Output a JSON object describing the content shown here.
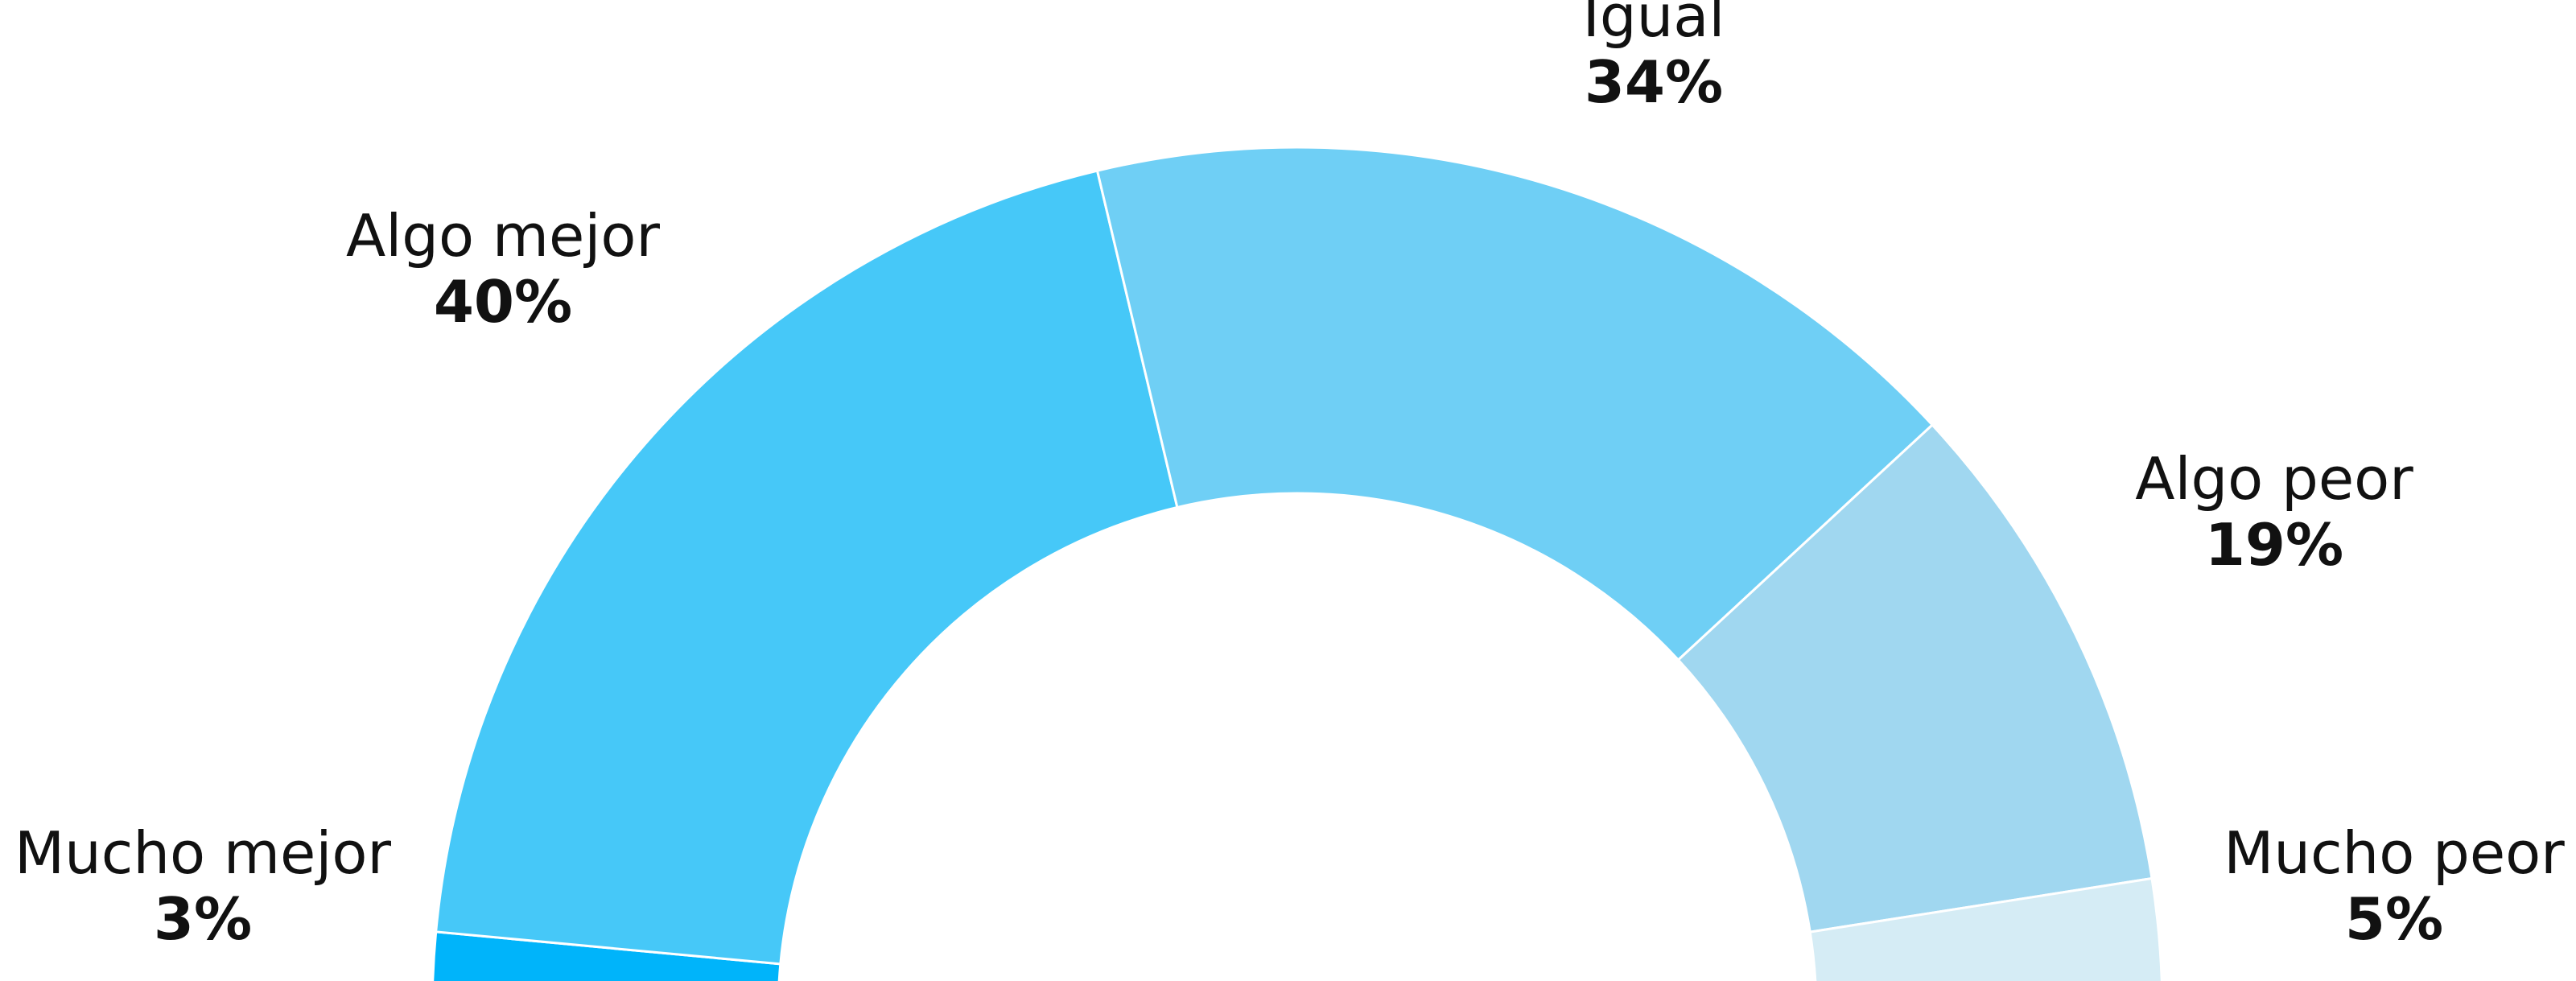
{
  "chart_data": {
    "type": "pie",
    "variant": "semi-donut",
    "title": "",
    "unit": "%",
    "slices": [
      {
        "label": "Mucho mejor",
        "value": 3,
        "display": "3%",
        "color": "#00b4fa"
      },
      {
        "label": "Algo mejor",
        "value": 40,
        "display": "40%",
        "color": "#46c8f8"
      },
      {
        "label": "Igual",
        "value": 34,
        "display": "34%",
        "color": "#6fcff5"
      },
      {
        "label": "Algo peor",
        "value": 19,
        "display": "19%",
        "color": "#a0d7f0"
      },
      {
        "label": "Mucho peor",
        "value": 5,
        "display": "5%",
        "color": "#d5ecf5"
      }
    ]
  }
}
